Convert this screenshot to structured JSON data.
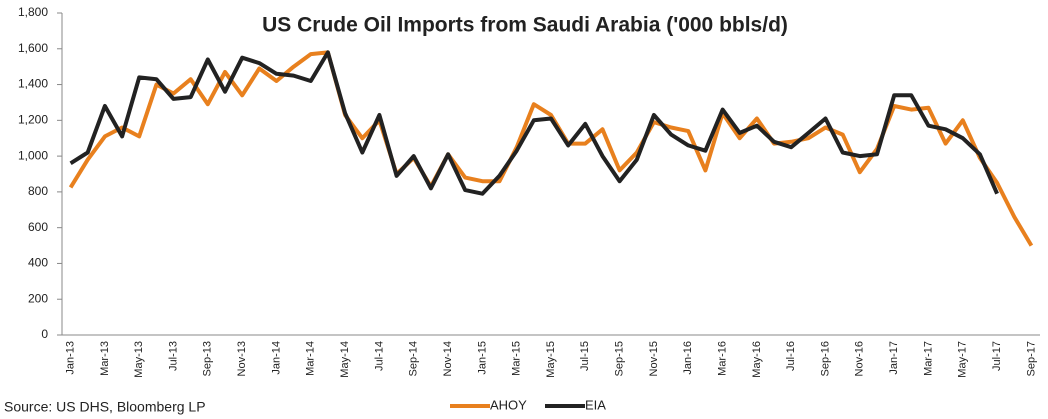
{
  "chart_data": {
    "type": "line",
    "title": "US Crude Oil Imports from Saudi Arabia ('000 bbls/d)",
    "source": "Source: US DHS, Bloomberg LP",
    "categories": [
      "Jan-13",
      null,
      "Mar-13",
      null,
      "May-13",
      null,
      "Jul-13",
      null,
      "Sep-13",
      null,
      "Nov-13",
      null,
      "Jan-14",
      null,
      "Mar-14",
      null,
      "May-14",
      null,
      "Jul-14",
      null,
      "Sep-14",
      null,
      "Nov-14",
      null,
      "Jan-15",
      null,
      "Mar-15",
      null,
      "May-15",
      null,
      "Jul-15",
      null,
      "Sep-15",
      null,
      "Nov-15",
      null,
      "Jan-16",
      null,
      "Mar-16",
      null,
      "May-16",
      null,
      "Jul-16",
      null,
      "Sep-16",
      null,
      "Nov-16",
      null,
      "Jan-17",
      null,
      "Mar-17",
      null,
      "May-17",
      null,
      "Jul-17",
      null,
      "Sep-17"
    ],
    "series": [
      {
        "name": "AHOY",
        "color": "#e8801e",
        "values": [
          825,
          980,
          1110,
          1160,
          1110,
          1400,
          1350,
          1430,
          1290,
          1470,
          1340,
          1490,
          1420,
          1500,
          1570,
          1580,
          1230,
          1100,
          1200,
          900,
          990,
          830,
          1010,
          880,
          860,
          860,
          1050,
          1290,
          1230,
          1070,
          1070,
          1150,
          920,
          1020,
          1190,
          1160,
          1140,
          920,
          1240,
          1100,
          1210,
          1070,
          1080,
          1100,
          1160,
          1120,
          910,
          1040,
          1280,
          1260,
          1270,
          1070,
          1200,
          990,
          850,
          660,
          500
        ]
      },
      {
        "name": "EIA",
        "color": "#222222",
        "values": [
          960,
          1020,
          1280,
          1110,
          1440,
          1430,
          1320,
          1330,
          1540,
          1360,
          1550,
          1520,
          1460,
          1450,
          1420,
          1580,
          1240,
          1020,
          1230,
          890,
          1000,
          820,
          1010,
          810,
          790,
          890,
          1030,
          1200,
          1210,
          1060,
          1180,
          1000,
          860,
          980,
          1230,
          1120,
          1060,
          1030,
          1260,
          1130,
          1170,
          1080,
          1050,
          1130,
          1210,
          1020,
          1000,
          1010,
          1340,
          1340,
          1170,
          1150,
          1100,
          1010,
          790,
          null,
          null
        ]
      }
    ],
    "ylim": [
      0,
      1800
    ],
    "yticks": [
      0,
      200,
      400,
      600,
      800,
      {
        "value": 1000,
        "label": "1,000"
      },
      {
        "value": 1200,
        "label": "1,200"
      },
      {
        "value": 1400,
        "label": "1,400"
      },
      {
        "value": 1600,
        "label": "1,600"
      },
      {
        "value": 1800,
        "label": "1,800"
      }
    ],
    "grid": false,
    "legend": "bottom"
  }
}
